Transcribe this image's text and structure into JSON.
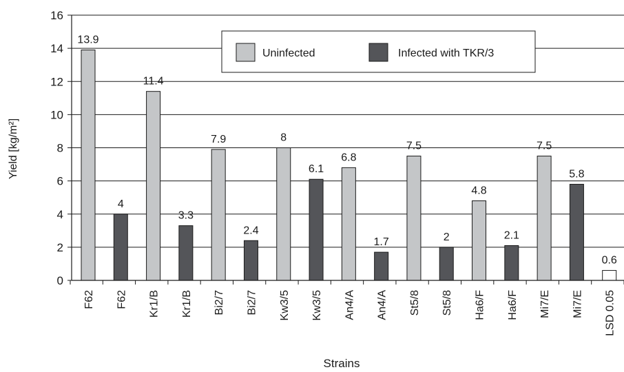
{
  "chart_data": {
    "type": "bar",
    "xlabel": "Strains",
    "ylabel": "Yield [kg/m²]",
    "ylim": [
      0,
      16
    ],
    "yticks": [
      0,
      2,
      4,
      6,
      8,
      10,
      12,
      14,
      16
    ],
    "grid": "horizontal",
    "legend_position": "top-right",
    "legend": [
      {
        "name": "Uninfected",
        "color": "#c4c6c8"
      },
      {
        "name": "Infected with TKR/3",
        "color": "#545559"
      }
    ],
    "bars": [
      {
        "category": "F62",
        "value": 13.9,
        "label": "13.9",
        "series": "Uninfected"
      },
      {
        "category": "F62",
        "value": 4,
        "label": "4",
        "series": "Infected with TKR/3"
      },
      {
        "category": "Kr1/B",
        "value": 11.4,
        "label": "11.4",
        "series": "Uninfected"
      },
      {
        "category": "Kr1/B",
        "value": 3.3,
        "label": "3.3",
        "series": "Infected with TKR/3"
      },
      {
        "category": "Bi2/7",
        "value": 7.9,
        "label": "7.9",
        "series": "Uninfected"
      },
      {
        "category": "Bi2/7",
        "value": 2.4,
        "label": "2.4",
        "series": "Infected with TKR/3"
      },
      {
        "category": "Kw3/5",
        "value": 8,
        "label": "8",
        "series": "Uninfected"
      },
      {
        "category": "Kw3/5",
        "value": 6.1,
        "label": "6.1",
        "series": "Infected with TKR/3"
      },
      {
        "category": "An4/A",
        "value": 6.8,
        "label": "6.8",
        "series": "Uninfected"
      },
      {
        "category": "An4/A",
        "value": 1.7,
        "label": "1.7",
        "series": "Infected with TKR/3"
      },
      {
        "category": "St5/8",
        "value": 7.5,
        "label": "7.5",
        "series": "Uninfected"
      },
      {
        "category": "St5/8",
        "value": 2,
        "label": "2",
        "series": "Infected with TKR/3"
      },
      {
        "category": "Ha6/F",
        "value": 4.8,
        "label": "4.8",
        "series": "Uninfected"
      },
      {
        "category": "Ha6/F",
        "value": 2.1,
        "label": "2.1",
        "series": "Infected with TKR/3"
      },
      {
        "category": "Mi7/E",
        "value": 7.5,
        "label": "7.5",
        "series": "Uninfected"
      },
      {
        "category": "Mi7/E",
        "value": 5.8,
        "label": "5.8",
        "series": "Infected with TKR/3"
      },
      {
        "category": "LSD 0.05",
        "value": 0.6,
        "label": "0.6",
        "series": "LSD"
      }
    ],
    "colors": {
      "Uninfected": "#c4c6c8",
      "Infected with TKR/3": "#545559",
      "LSD": "#ffffff",
      "stroke": "#1a1a1a"
    }
  }
}
